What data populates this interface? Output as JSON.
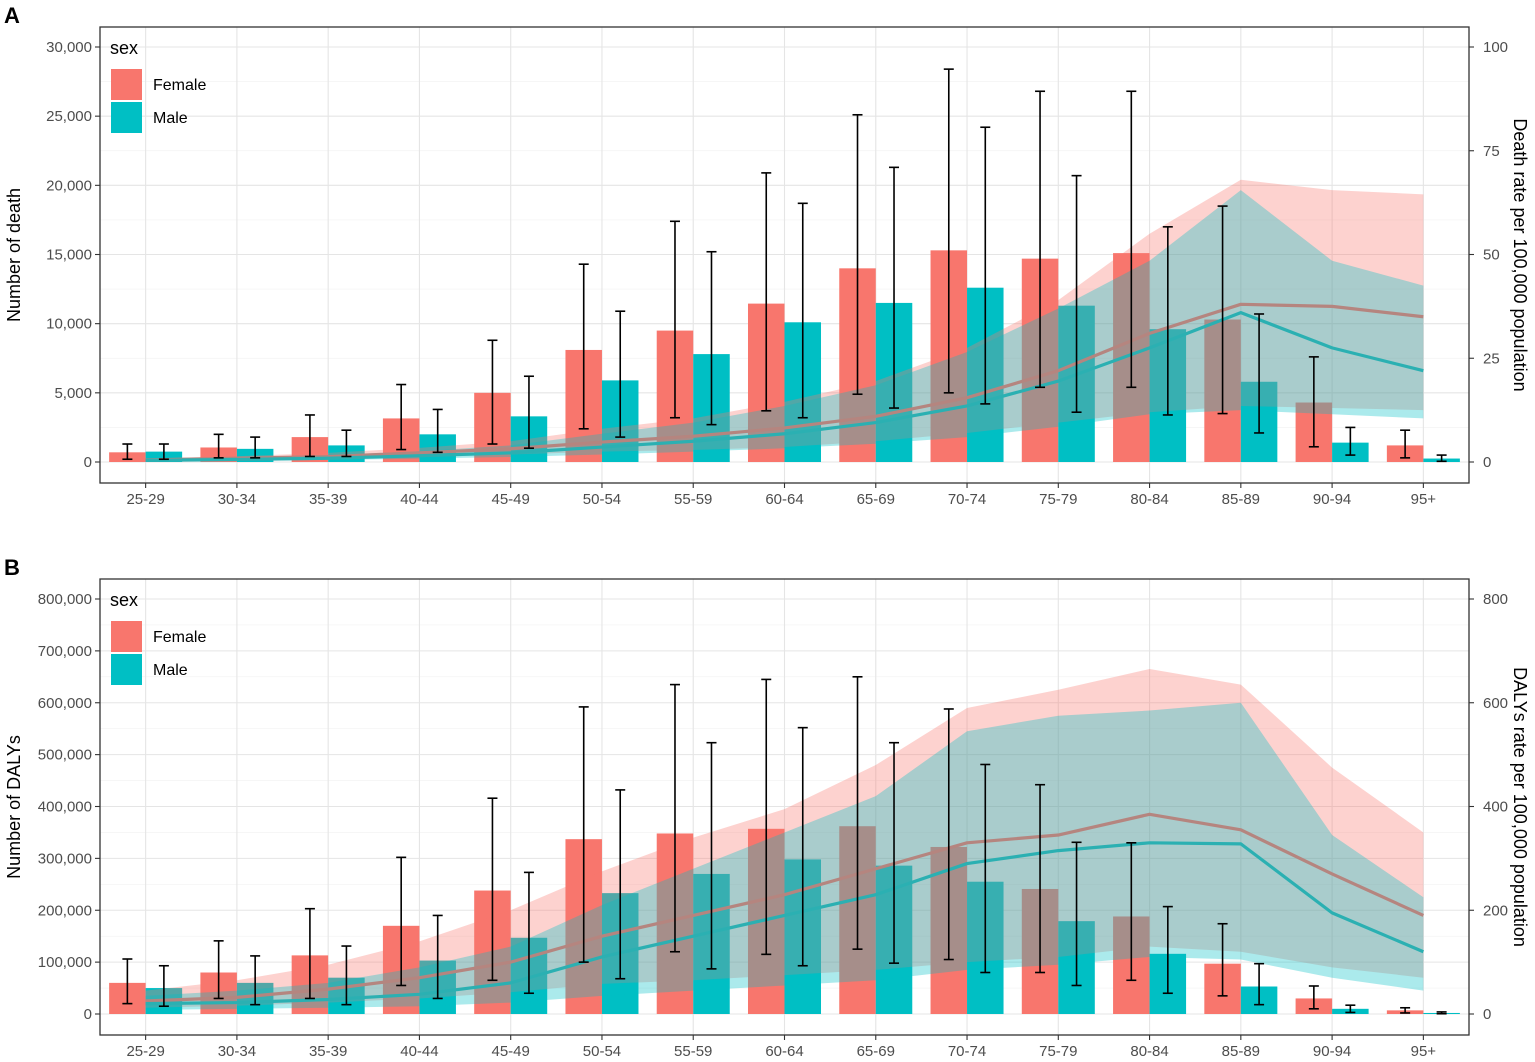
{
  "chart_data": [
    {
      "type": "bar",
      "panel_label": "A",
      "categories": [
        "25-29",
        "30-34",
        "35-39",
        "40-44",
        "45-49",
        "50-54",
        "55-59",
        "60-64",
        "65-69",
        "70-74",
        "75-79",
        "80-84",
        "85-89",
        "90-94",
        "95+"
      ],
      "ylabel": "Number of death",
      "y2label": "Death rate per 100,000 population",
      "ylim": [
        0,
        30000
      ],
      "y2lim": [
        0,
        100
      ],
      "yticks": [
        0,
        5000,
        10000,
        15000,
        20000,
        25000,
        30000
      ],
      "yticklabels": [
        "0",
        "5,000",
        "10,000",
        "15,000",
        "20,000",
        "25,000",
        "30,000"
      ],
      "y2ticks": [
        0,
        25,
        50,
        75,
        100
      ],
      "y2ticklabels": [
        "0",
        "25",
        "50",
        "75",
        "100"
      ],
      "legend": {
        "title": "sex",
        "position": "top-left",
        "items": [
          "Female",
          "Male"
        ]
      },
      "series": [
        {
          "name": "Female",
          "color": "#F8766D",
          "values": [
            700,
            1050,
            1800,
            3150,
            5000,
            8100,
            9500,
            11450,
            14000,
            15300,
            14700,
            15100,
            10300,
            4300,
            1200
          ],
          "err_low": [
            200,
            300,
            400,
            900,
            1300,
            2400,
            3200,
            3700,
            4900,
            5000,
            5400,
            5400,
            3500,
            1100,
            300
          ],
          "err_high": [
            1300,
            2000,
            3400,
            5600,
            8800,
            14300,
            17400,
            20900,
            25100,
            28400,
            26800,
            26800,
            18500,
            7600,
            2300
          ],
          "rate": [
            0.5,
            0.9,
            1.3,
            2.2,
            3.2,
            4.8,
            6.2,
            8.2,
            11.0,
            15.5,
            22.0,
            31.0,
            38.0,
            37.5,
            35.0
          ],
          "rate_low": [
            0.3,
            0.5,
            0.8,
            1.2,
            1.8,
            2.5,
            2.9,
            3.6,
            5.0,
            7.0,
            9.5,
            12.0,
            13.5,
            13.0,
            12.5
          ],
          "rate_high": [
            0.8,
            1.4,
            2.2,
            3.4,
            5.0,
            8.0,
            10.5,
            14.5,
            19.5,
            27.5,
            39.0,
            55.0,
            68.0,
            65.5,
            64.5
          ]
        },
        {
          "name": "Male",
          "color": "#00BFC4",
          "values": [
            750,
            950,
            1200,
            2000,
            3300,
            5900,
            7800,
            10100,
            11500,
            12600,
            11300,
            9600,
            5800,
            1400,
            250
          ],
          "err_low": [
            200,
            300,
            400,
            700,
            1000,
            1800,
            2700,
            3200,
            3900,
            4200,
            3600,
            3400,
            2100,
            500,
            50
          ],
          "err_high": [
            1300,
            1800,
            2300,
            3800,
            6200,
            10900,
            15200,
            18700,
            21300,
            24200,
            20700,
            17000,
            10700,
            2500,
            500
          ],
          "rate": [
            0.4,
            0.6,
            0.9,
            1.5,
            2.2,
            3.6,
            5.0,
            6.8,
            9.5,
            13.5,
            19.5,
            27.5,
            36.0,
            27.5,
            22.0
          ],
          "rate_low": [
            0.2,
            0.3,
            0.5,
            0.8,
            1.2,
            1.8,
            2.5,
            3.3,
            4.4,
            6.0,
            8.5,
            11.5,
            12.5,
            11.5,
            10.5
          ],
          "rate_high": [
            0.7,
            1.1,
            1.6,
            2.6,
            4.0,
            6.8,
            9.5,
            13.5,
            18.5,
            26.5,
            37.0,
            48.5,
            65.5,
            48.5,
            42.5
          ]
        }
      ]
    },
    {
      "type": "bar",
      "panel_label": "B",
      "categories": [
        "25-29",
        "30-34",
        "35-39",
        "40-44",
        "45-49",
        "50-54",
        "55-59",
        "60-64",
        "65-69",
        "70-74",
        "75-79",
        "80-84",
        "85-89",
        "90-94",
        "95+"
      ],
      "ylabel": "Number of DALYs",
      "y2label": "DALYs rate per 100,000 population",
      "ylim": [
        0,
        800000
      ],
      "y2lim": [
        0,
        800
      ],
      "yticks": [
        0,
        100000,
        200000,
        300000,
        400000,
        500000,
        600000,
        700000,
        800000
      ],
      "yticklabels": [
        "0",
        "100,000",
        "200,000",
        "300,000",
        "400,000",
        "500,000",
        "600,000",
        "700,000",
        "800,000"
      ],
      "y2ticks": [
        0,
        200,
        400,
        600,
        800
      ],
      "y2ticklabels": [
        "0",
        "200",
        "400",
        "600",
        "800"
      ],
      "legend": {
        "title": "sex",
        "position": "top-left",
        "items": [
          "Female",
          "Male"
        ]
      },
      "series": [
        {
          "name": "Female",
          "color": "#F8766D",
          "values": [
            60000,
            80000,
            113000,
            170000,
            238000,
            337000,
            348000,
            357000,
            362000,
            322000,
            241000,
            188000,
            97000,
            30000,
            7000
          ],
          "err_low": [
            20000,
            30000,
            30000,
            55000,
            65000,
            100000,
            120000,
            115000,
            125000,
            105000,
            80000,
            65000,
            35000,
            10000,
            2000
          ],
          "err_high": [
            106000,
            141000,
            203000,
            302000,
            416000,
            592000,
            635000,
            645000,
            650000,
            588000,
            442000,
            330000,
            174000,
            54000,
            12000
          ],
          "rate": [
            25,
            32,
            48,
            70,
            100,
            150,
            190,
            230,
            280,
            330,
            345,
            385,
            355,
            270,
            190
          ],
          "rate_low": [
            12,
            16,
            22,
            30,
            42,
            58,
            65,
            75,
            85,
            100,
            110,
            130,
            120,
            90,
            70
          ],
          "rate_high": [
            45,
            65,
            95,
            140,
            200,
            275,
            340,
            395,
            480,
            590,
            625,
            665,
            635,
            475,
            350
          ]
        },
        {
          "name": "Male",
          "color": "#00BFC4",
          "values": [
            50000,
            60000,
            70000,
            103000,
            147000,
            233000,
            270000,
            298000,
            286000,
            255000,
            179000,
            116000,
            53000,
            10000,
            2000
          ],
          "err_low": [
            15000,
            18000,
            18000,
            30000,
            40000,
            68000,
            87000,
            93000,
            98000,
            80000,
            55000,
            40000,
            18000,
            3000,
            500
          ],
          "err_high": [
            93000,
            112000,
            131000,
            190000,
            273000,
            432000,
            523000,
            552000,
            523000,
            481000,
            331000,
            207000,
            97000,
            17000,
            4000
          ],
          "rate": [
            20,
            22,
            28,
            38,
            60,
            110,
            150,
            190,
            230,
            290,
            315,
            330,
            328,
            195,
            120
          ],
          "rate_low": [
            8,
            10,
            12,
            15,
            22,
            35,
            45,
            55,
            65,
            85,
            95,
            110,
            105,
            70,
            45
          ],
          "rate_high": [
            35,
            45,
            60,
            90,
            130,
            210,
            280,
            350,
            420,
            545,
            575,
            585,
            600,
            345,
            225
          ]
        }
      ]
    }
  ]
}
